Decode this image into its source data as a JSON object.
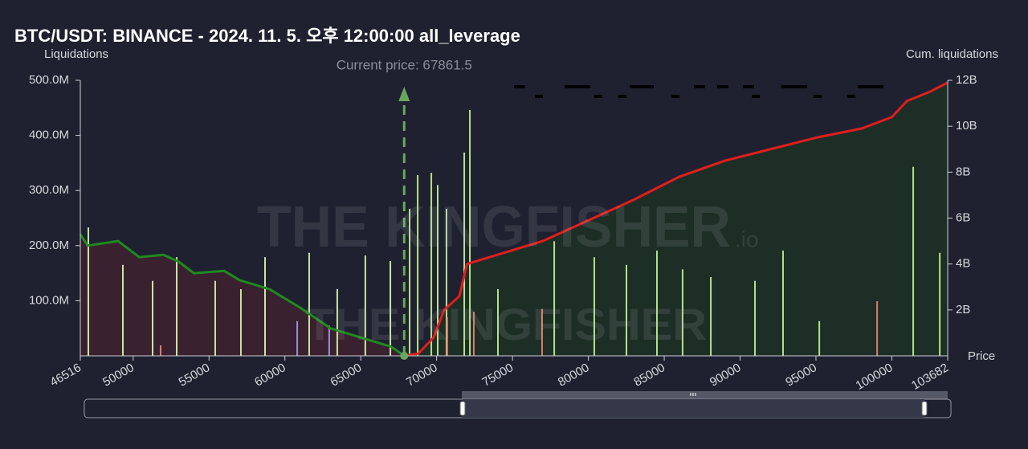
{
  "chart_data": {
    "type": "bar",
    "title": "BTC/USDT: BINANCE - 2024. 11. 5. 오후 12:00:00 all_leverage",
    "y_label": "Liquidations",
    "y2_label": "Cum. liquidations",
    "x_label": "Price",
    "watermark": "THE KINGFISHER",
    "watermark_suffix": ".io",
    "current_price": {
      "value": 67861.5,
      "label": "Current price: 67861.5"
    },
    "xlim": [
      46516,
      103682
    ],
    "xticks": [
      46516,
      50000,
      55000,
      60000,
      65000,
      70000,
      75000,
      80000,
      85000,
      90000,
      95000,
      100000,
      103682
    ],
    "ylim": [
      0,
      500000000
    ],
    "yticks": [
      {
        "value": 100000000,
        "label": "100.0M"
      },
      {
        "value": 200000000,
        "label": "200.0M"
      },
      {
        "value": 300000000,
        "label": "300.0M"
      },
      {
        "value": 400000000,
        "label": "400.0M"
      },
      {
        "value": 500000000,
        "label": "500.0M"
      }
    ],
    "y2lim": [
      0,
      12000000000
    ],
    "y2ticks": [
      {
        "value": 2000000000,
        "label": "2B"
      },
      {
        "value": 4000000000,
        "label": "4B"
      },
      {
        "value": 6000000000,
        "label": "6B"
      },
      {
        "value": 8000000000,
        "label": "8B"
      },
      {
        "value": 10000000000,
        "label": "10B"
      },
      {
        "value": 12000000000,
        "label": "12B"
      }
    ],
    "bars": {
      "x": [
        47045,
        49321,
        51280,
        51810,
        52868,
        55407,
        57100,
        58690,
        60810,
        61600,
        62920,
        63450,
        65300,
        66950,
        68220,
        68750,
        69650,
        70070,
        70650,
        70700,
        71820,
        72190,
        72450,
        74040,
        76950,
        77750,
        80390,
        82510,
        84520,
        86210,
        88070,
        90980,
        92830,
        95220,
        99030,
        101410,
        103160
      ],
      "values": [
        233000000,
        165000000,
        136000000,
        19000000,
        179000000,
        136000000,
        121000000,
        179000000,
        63000000,
        187000000,
        55000000,
        121000000,
        182000000,
        172000000,
        267000000,
        328000000,
        332000000,
        310000000,
        267000000,
        70000000,
        369000000,
        446000000,
        80000000,
        121000000,
        85000000,
        208000000,
        179000000,
        165000000,
        191000000,
        157000000,
        143000000,
        136000000,
        191000000,
        63000000,
        99000000,
        343000000,
        187000000
      ],
      "colors": [
        "#c9e6a0",
        "#c9e6a0",
        "#c9e6a0",
        "#e07a6a",
        "#c9e6a0",
        "#c9e6a0",
        "#c9e6a0",
        "#c9e6a0",
        "#9a8fd0",
        "#c9e6a0",
        "#9a8fd0",
        "#c9e6a0",
        "#c9e6a0",
        "#c9e6a0",
        "#b6e08c",
        "#b6e08c",
        "#b6e08c",
        "#b6e08c",
        "#b6e08c",
        "#e07a6a",
        "#b6e08c",
        "#b6e08c",
        "#e07a6a",
        "#b6e08c",
        "#e07a6a",
        "#b6e08c",
        "#b6e08c",
        "#b6e08c",
        "#b6e08c",
        "#b6e08c",
        "#b6e08c",
        "#b6e08c",
        "#b6e08c",
        "#b6e08c",
        "#e07a6a",
        "#b6e08c",
        "#b6e08c"
      ]
    },
    "series": [
      {
        "color": "#1f8a1f",
        "fill": "#3a2130",
        "axis": "y2",
        "x": [
          46516,
          47000,
          49000,
          50400,
          52000,
          53000,
          54000,
          56000,
          57000,
          59000,
          61000,
          63000,
          65000,
          67000,
          67861.5
        ],
        "values": [
          5300000000,
          4800000000,
          5000000000,
          4300000000,
          4400000000,
          4100000000,
          3600000000,
          3700000000,
          3300000000,
          2900000000,
          2100000000,
          1200000000,
          800000000,
          400000000,
          0
        ]
      },
      {
        "color": "#e01e1e",
        "fill": "#1d2e26",
        "axis": "y2",
        "x": [
          67861.5,
          68800,
          69800,
          70500,
          71500,
          72000,
          74000,
          77000,
          80000,
          83000,
          86000,
          89000,
          92000,
          95000,
          98000,
          100000,
          101000,
          102500,
          103682
        ],
        "values": [
          0,
          100000000,
          800000000,
          2000000000,
          2600000000,
          4000000000,
          4400000000,
          5000000000,
          5900000000,
          6800000000,
          7800000000,
          8500000000,
          9000000000,
          9500000000,
          9900000000,
          10400000000,
          11100000000,
          11500000000,
          11900000000
        ]
      }
    ]
  }
}
